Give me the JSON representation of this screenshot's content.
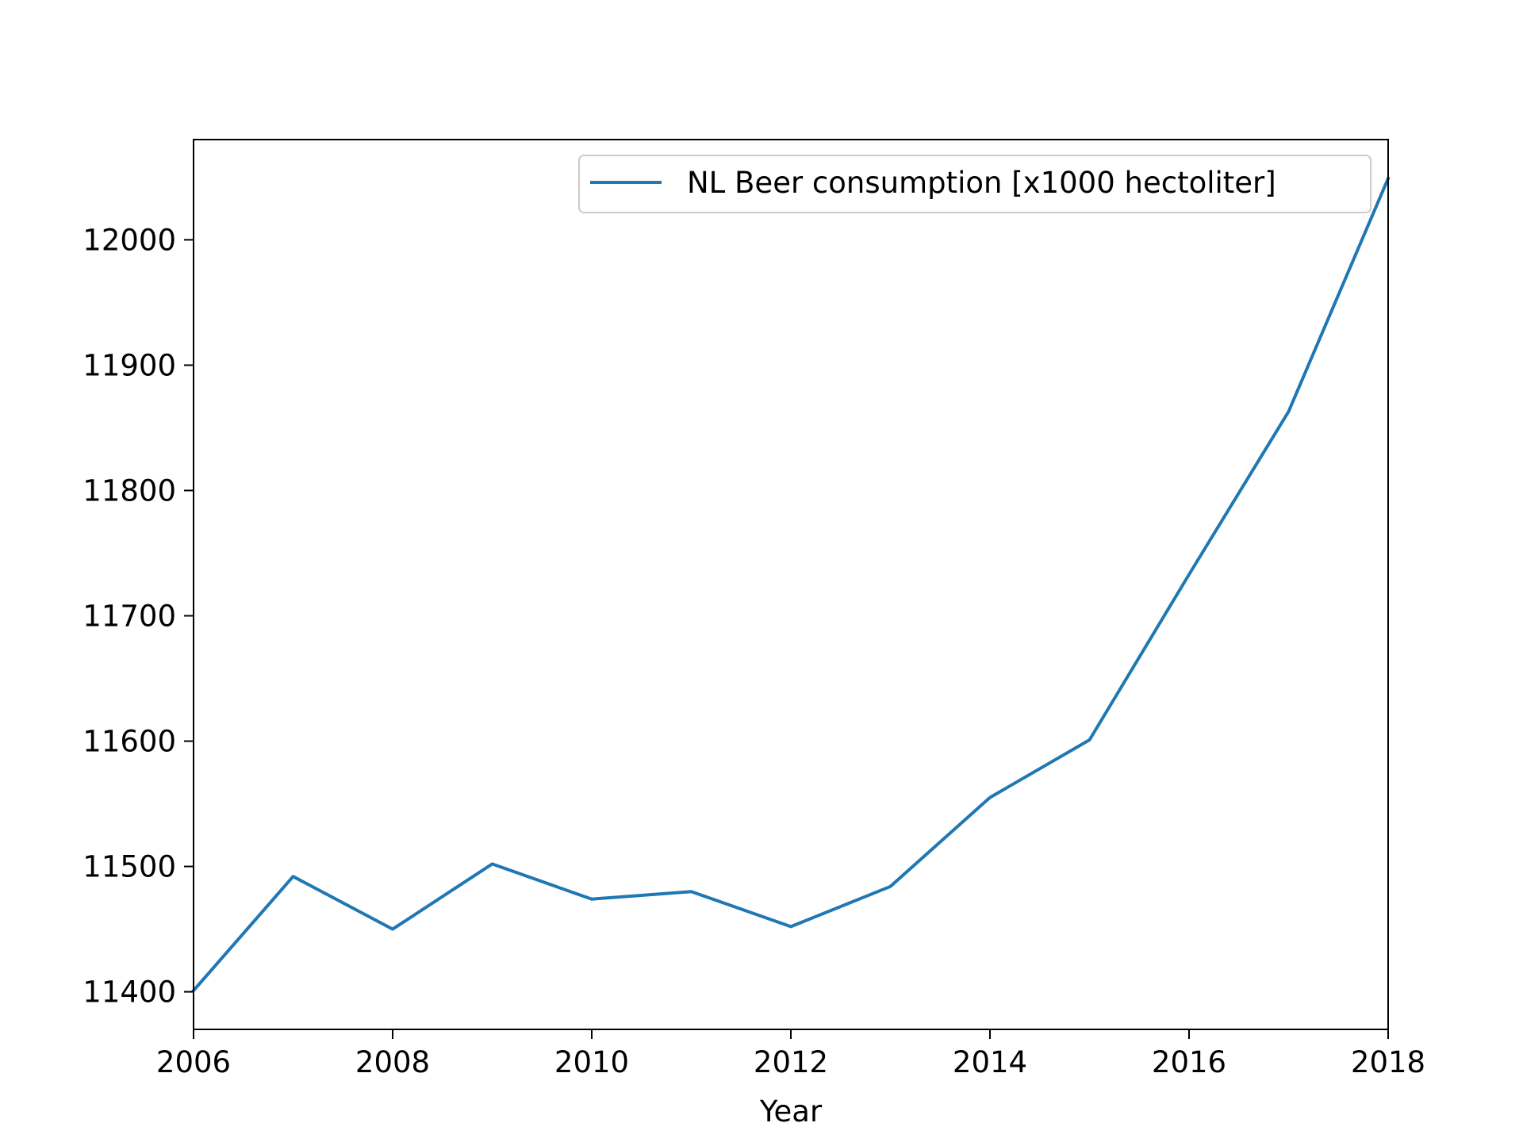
{
  "chart_data": {
    "type": "line",
    "xlabel": "Year",
    "ylabel": "",
    "xlim": [
      2006,
      2018
    ],
    "ylim": [
      11370,
      12080
    ],
    "x_ticks": [
      2006,
      2008,
      2010,
      2012,
      2014,
      2016,
      2018
    ],
    "y_ticks": [
      11400,
      11500,
      11600,
      11700,
      11800,
      11900,
      12000
    ],
    "grid": false,
    "legend_position": "top-right",
    "series": [
      {
        "name": "NL Beer consumption [x1000 hectoliter]",
        "color": "#1f77b4",
        "x": [
          2006,
          2007,
          2008,
          2009,
          2010,
          2011,
          2012,
          2013,
          2014,
          2015,
          2016,
          2017,
          2018
        ],
        "y": [
          11401,
          11492,
          11450,
          11502,
          11474,
          11480,
          11452,
          11484,
          11555,
          11601,
          11733,
          11863,
          12049
        ]
      }
    ]
  }
}
